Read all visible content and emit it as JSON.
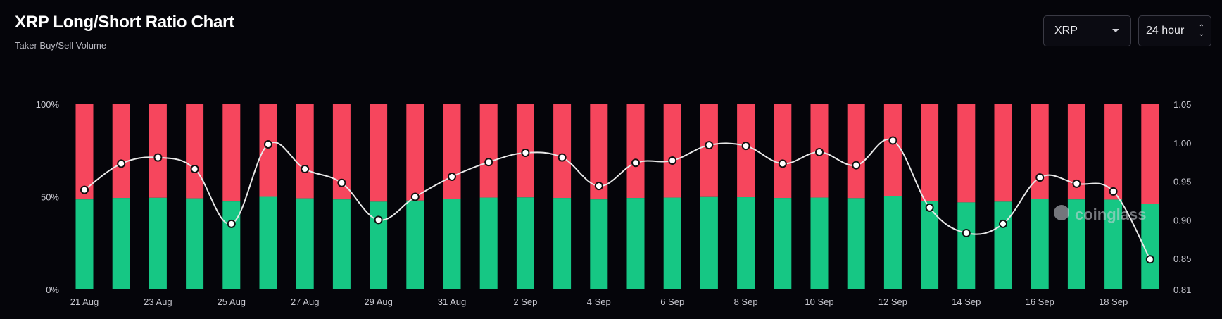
{
  "header": {
    "title": "XRP Long/Short Ratio Chart",
    "subtitle": "Taker Buy/Sell Volume"
  },
  "controls": {
    "coin_select": "XRP",
    "range_select": "24 hour"
  },
  "watermark": "coinglass",
  "colors": {
    "long": "#16c784",
    "short": "#f6465d",
    "line": "#e8e8e8",
    "background": "#05050a"
  },
  "chart_data": {
    "type": "bar",
    "stacked_percent": true,
    "x": [
      "21 Aug",
      "22 Aug",
      "23 Aug",
      "24 Aug",
      "25 Aug",
      "26 Aug",
      "27 Aug",
      "28 Aug",
      "29 Aug",
      "30 Aug",
      "31 Aug",
      "1 Sep",
      "2 Sep",
      "3 Sep",
      "4 Sep",
      "5 Sep",
      "6 Sep",
      "7 Sep",
      "8 Sep",
      "9 Sep",
      "10 Sep",
      "11 Sep",
      "12 Sep",
      "13 Sep",
      "14 Sep",
      "15 Sep",
      "16 Sep",
      "17 Sep",
      "18 Sep",
      "19 Sep"
    ],
    "x_tick_labels": [
      "21 Aug",
      "23 Aug",
      "25 Aug",
      "27 Aug",
      "29 Aug",
      "31 Aug",
      "2 Sep",
      "4 Sep",
      "6 Sep",
      "8 Sep",
      "10 Sep",
      "12 Sep",
      "14 Sep",
      "16 Sep",
      "18 Sep"
    ],
    "series": [
      {
        "axis": "left",
        "color": "#16c784",
        "values": [
          48.6,
          49.4,
          49.5,
          49.2,
          47.5,
          50.0,
          49.2,
          48.6,
          47.4,
          48.0,
          48.9,
          49.6,
          49.7,
          49.4,
          48.6,
          49.4,
          49.6,
          49.9,
          49.8,
          49.4,
          49.6,
          49.3,
          50.3,
          47.8,
          47.0,
          47.4,
          48.9,
          48.6,
          48.5,
          46.1
        ]
      },
      {
        "axis": "left",
        "color": "#f6465d",
        "values": [
          51.4,
          50.6,
          50.5,
          50.8,
          52.5,
          50.0,
          50.8,
          51.4,
          52.6,
          52.0,
          51.1,
          50.4,
          50.3,
          50.6,
          51.4,
          50.6,
          50.4,
          50.1,
          50.2,
          50.6,
          50.4,
          50.7,
          49.7,
          52.2,
          53.0,
          52.6,
          51.1,
          51.4,
          51.5,
          53.9
        ]
      },
      {
        "type": "line",
        "axis": "right",
        "color": "#e8e8e8",
        "values": [
          0.939,
          0.973,
          0.981,
          0.966,
          0.895,
          0.998,
          0.966,
          0.948,
          0.9,
          0.93,
          0.956,
          0.975,
          0.987,
          0.981,
          0.944,
          0.974,
          0.977,
          0.997,
          0.996,
          0.973,
          0.988,
          0.971,
          1.003,
          0.916,
          0.883,
          0.895,
          0.955,
          0.947,
          0.937,
          0.849
        ]
      }
    ],
    "y_left": {
      "ticks": [
        "100%",
        "50%",
        "0%"
      ],
      "ylim": [
        0,
        100
      ]
    },
    "y_right": {
      "ticks": [
        "1.05",
        "1.00",
        "0.95",
        "0.90",
        "0.85",
        "0.81"
      ],
      "ylim": [
        0.81,
        1.05
      ]
    }
  }
}
